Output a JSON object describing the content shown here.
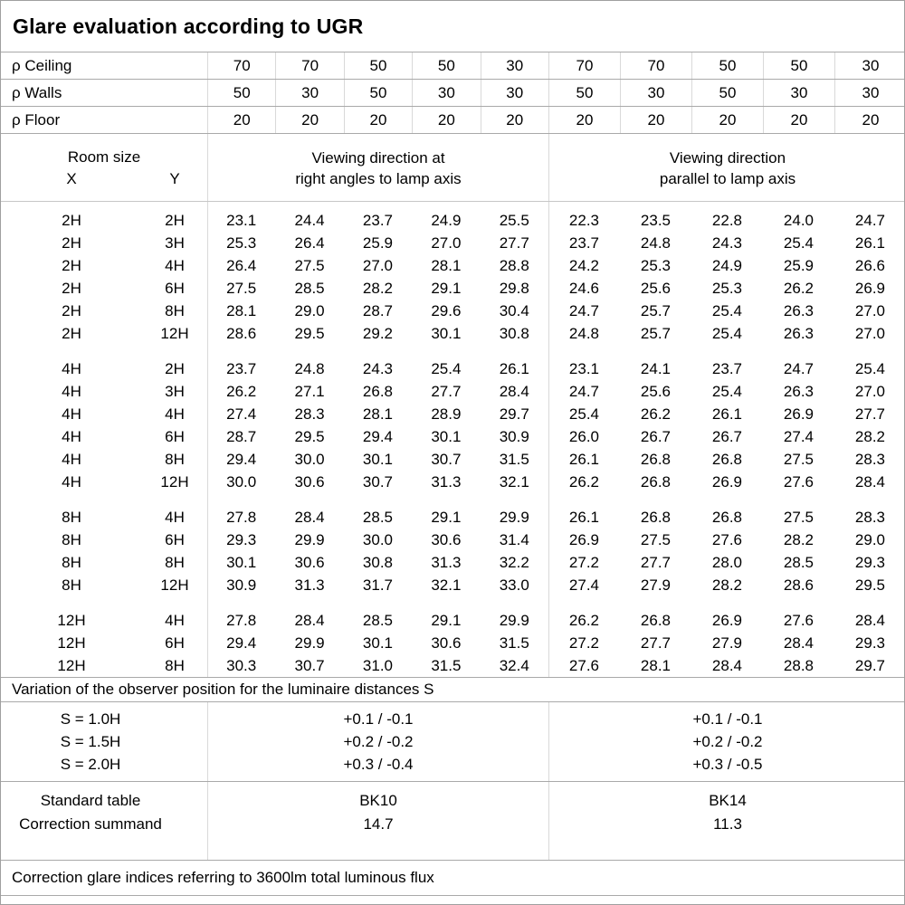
{
  "title": "Glare evaluation according to UGR",
  "colors": {
    "background": "#ffffff",
    "text": "#000000",
    "section_line": "#a9a9a9",
    "column_line": "#d9d9d9"
  },
  "reflectance": {
    "rows": [
      {
        "label": "ρ Ceiling",
        "values": [
          "70",
          "70",
          "50",
          "50",
          "30",
          "70",
          "70",
          "50",
          "50",
          "30"
        ]
      },
      {
        "label": "ρ Walls",
        "values": [
          "50",
          "30",
          "50",
          "30",
          "30",
          "50",
          "30",
          "50",
          "30",
          "30"
        ]
      },
      {
        "label": "ρ Floor",
        "values": [
          "20",
          "20",
          "20",
          "20",
          "20",
          "20",
          "20",
          "20",
          "20",
          "20"
        ]
      }
    ]
  },
  "header": {
    "room_size_label": "Room size",
    "x_label": "X",
    "y_label": "Y",
    "group1_line1": "Viewing direction at",
    "group1_line2": "right angles to lamp axis",
    "group2_line1": "Viewing direction",
    "group2_line2": "parallel to lamp axis"
  },
  "groups": [
    {
      "rows": [
        {
          "x": "2H",
          "y": "2H",
          "v": [
            "23.1",
            "24.4",
            "23.7",
            "24.9",
            "25.5",
            "22.3",
            "23.5",
            "22.8",
            "24.0",
            "24.7"
          ]
        },
        {
          "x": "2H",
          "y": "3H",
          "v": [
            "25.3",
            "26.4",
            "25.9",
            "27.0",
            "27.7",
            "23.7",
            "24.8",
            "24.3",
            "25.4",
            "26.1"
          ]
        },
        {
          "x": "2H",
          "y": "4H",
          "v": [
            "26.4",
            "27.5",
            "27.0",
            "28.1",
            "28.8",
            "24.2",
            "25.3",
            "24.9",
            "25.9",
            "26.6"
          ]
        },
        {
          "x": "2H",
          "y": "6H",
          "v": [
            "27.5",
            "28.5",
            "28.2",
            "29.1",
            "29.8",
            "24.6",
            "25.6",
            "25.3",
            "26.2",
            "26.9"
          ]
        },
        {
          "x": "2H",
          "y": "8H",
          "v": [
            "28.1",
            "29.0",
            "28.7",
            "29.6",
            "30.4",
            "24.7",
            "25.7",
            "25.4",
            "26.3",
            "27.0"
          ]
        },
        {
          "x": "2H",
          "y": "12H",
          "v": [
            "28.6",
            "29.5",
            "29.2",
            "30.1",
            "30.8",
            "24.8",
            "25.7",
            "25.4",
            "26.3",
            "27.0"
          ]
        }
      ]
    },
    {
      "rows": [
        {
          "x": "4H",
          "y": "2H",
          "v": [
            "23.7",
            "24.8",
            "24.3",
            "25.4",
            "26.1",
            "23.1",
            "24.1",
            "23.7",
            "24.7",
            "25.4"
          ]
        },
        {
          "x": "4H",
          "y": "3H",
          "v": [
            "26.2",
            "27.1",
            "26.8",
            "27.7",
            "28.4",
            "24.7",
            "25.6",
            "25.4",
            "26.3",
            "27.0"
          ]
        },
        {
          "x": "4H",
          "y": "4H",
          "v": [
            "27.4",
            "28.3",
            "28.1",
            "28.9",
            "29.7",
            "25.4",
            "26.2",
            "26.1",
            "26.9",
            "27.7"
          ]
        },
        {
          "x": "4H",
          "y": "6H",
          "v": [
            "28.7",
            "29.5",
            "29.4",
            "30.1",
            "30.9",
            "26.0",
            "26.7",
            "26.7",
            "27.4",
            "28.2"
          ]
        },
        {
          "x": "4H",
          "y": "8H",
          "v": [
            "29.4",
            "30.0",
            "30.1",
            "30.7",
            "31.5",
            "26.1",
            "26.8",
            "26.8",
            "27.5",
            "28.3"
          ]
        },
        {
          "x": "4H",
          "y": "12H",
          "v": [
            "30.0",
            "30.6",
            "30.7",
            "31.3",
            "32.1",
            "26.2",
            "26.8",
            "26.9",
            "27.6",
            "28.4"
          ]
        }
      ]
    },
    {
      "rows": [
        {
          "x": "8H",
          "y": "4H",
          "v": [
            "27.8",
            "28.4",
            "28.5",
            "29.1",
            "29.9",
            "26.1",
            "26.8",
            "26.8",
            "27.5",
            "28.3"
          ]
        },
        {
          "x": "8H",
          "y": "6H",
          "v": [
            "29.3",
            "29.9",
            "30.0",
            "30.6",
            "31.4",
            "26.9",
            "27.5",
            "27.6",
            "28.2",
            "29.0"
          ]
        },
        {
          "x": "8H",
          "y": "8H",
          "v": [
            "30.1",
            "30.6",
            "30.8",
            "31.3",
            "32.2",
            "27.2",
            "27.7",
            "28.0",
            "28.5",
            "29.3"
          ]
        },
        {
          "x": "8H",
          "y": "12H",
          "v": [
            "30.9",
            "31.3",
            "31.7",
            "32.1",
            "33.0",
            "27.4",
            "27.9",
            "28.2",
            "28.6",
            "29.5"
          ]
        }
      ]
    },
    {
      "rows": [
        {
          "x": "12H",
          "y": "4H",
          "v": [
            "27.8",
            "28.4",
            "28.5",
            "29.1",
            "29.9",
            "26.2",
            "26.8",
            "26.9",
            "27.6",
            "28.4"
          ]
        },
        {
          "x": "12H",
          "y": "6H",
          "v": [
            "29.4",
            "29.9",
            "30.1",
            "30.6",
            "31.5",
            "27.2",
            "27.7",
            "27.9",
            "28.4",
            "29.3"
          ]
        },
        {
          "x": "12H",
          "y": "8H",
          "v": [
            "30.3",
            "30.7",
            "31.0",
            "31.5",
            "32.4",
            "27.6",
            "28.1",
            "28.4",
            "28.8",
            "29.7"
          ]
        }
      ]
    }
  ],
  "variation": {
    "heading": "Variation of the observer position for the luminaire distances S",
    "s_labels": [
      "S = 1.0H",
      "S = 1.5H",
      "S = 2.0H"
    ],
    "group1_values": [
      "+0.1 / -0.1",
      "+0.2 / -0.2",
      "+0.3 / -0.4"
    ],
    "group2_values": [
      "+0.1 / -0.1",
      "+0.2 / -0.2",
      "+0.3 / -0.5"
    ]
  },
  "standard": {
    "row_labels": [
      "Standard table",
      "Correction summand"
    ],
    "group1_values": [
      "BK10",
      "14.7"
    ],
    "group2_values": [
      "BK14",
      "11.3"
    ]
  },
  "footer": {
    "note": "Correction glare indices referring to 3600lm total luminous flux"
  }
}
